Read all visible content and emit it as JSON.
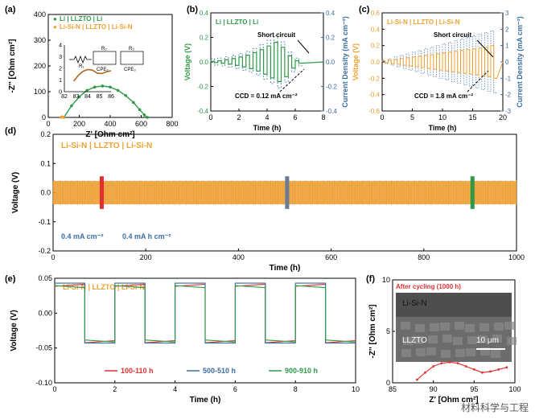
{
  "colors": {
    "green": "#2e9a48",
    "orange": "#f0a030",
    "blue": "#3a6ea5",
    "red": "#e03030",
    "gray": "#6a7c94",
    "purple": "#9a2e90"
  },
  "watermark": "材料科学与工程",
  "chart_data": [
    {
      "id": "a",
      "panel_label": "(a)",
      "type": "scatter",
      "xlabel": "Z' [Ohm cm²]",
      "ylabel": "-Z'' [Ohm cm²]",
      "xlim": [
        0,
        800
      ],
      "ylim": [
        0,
        400
      ],
      "xticks": [
        "0",
        "200",
        "400",
        "600",
        "800"
      ],
      "yticks": [
        "0",
        "100",
        "200",
        "300",
        "400"
      ],
      "legend": [
        "Li | LLZTO | Li",
        "Li-Si-N | LLZTO | Li-Si-N"
      ],
      "circuit_labels": [
        "R₁",
        "R₂",
        "R₃",
        "CPE₂",
        "CPE₃"
      ],
      "series": [
        {
          "name": "Li | LLZTO | Li",
          "x": [
            100,
            150,
            200,
            250,
            300,
            350,
            400,
            450,
            500,
            550,
            590,
            620,
            640
          ],
          "y": [
            0,
            45,
            80,
            105,
            118,
            122,
            118,
            105,
            85,
            58,
            30,
            10,
            0
          ]
        },
        {
          "name": "Li-Si-N | LLZTO | Li-Si-N",
          "x": [
            82,
            85,
            88,
            92,
            96,
            100
          ],
          "y": [
            0,
            2,
            3,
            2,
            1,
            0
          ]
        }
      ],
      "inset": {
        "xticks": [
          "82",
          "83",
          "84",
          "85",
          "86"
        ],
        "yticks": [
          "0",
          "1",
          "2",
          "3",
          "4"
        ],
        "x": [
          82.8,
          83.2,
          83.6,
          84.0,
          84.4,
          84.8,
          85.2,
          85.6,
          86.0
        ],
        "y": [
          0.9,
          1.4,
          1.75,
          1.9,
          1.85,
          1.6,
          1.55,
          1.7,
          1.8
        ]
      }
    },
    {
      "id": "b",
      "panel_label": "(b)",
      "type": "line",
      "title": "Li | LLZTO | Li",
      "xlabel": "Time (h)",
      "ylabel": "Voltage (V)",
      "y2label": "Current Density (mA cm⁻²)",
      "xlim": [
        0,
        8
      ],
      "ylim": [
        -0.4,
        0.4
      ],
      "y2lim": [
        -0.4,
        0.4
      ],
      "xticks": [
        "0",
        "2",
        "4",
        "6",
        "8"
      ],
      "yticks": [
        "-0.4",
        "-0.2",
        "0.0",
        "0.2",
        "0.4"
      ],
      "y2ticks": [
        "-0.4",
        "-0.2",
        "0.0",
        "0.2",
        "0.4"
      ],
      "annotations": [
        "Short circuit",
        "CCD = 0.12 mA cm⁻²"
      ],
      "steps": [
        0.005,
        0.01,
        0.018,
        0.028,
        0.04,
        0.055,
        0.075,
        0.1,
        0.13,
        0.16,
        0.12,
        0.05,
        0.01
      ],
      "step_duration_h": 0.5
    },
    {
      "id": "c",
      "panel_label": "(c)",
      "type": "line",
      "title": "Li-Si-N | LLZTO | Li-Si-N",
      "xlabel": "Time (h)",
      "ylabel": "Voltage (V)",
      "y2label": "Current Density (mA cm⁻²)",
      "xlim": [
        0,
        20
      ],
      "ylim": [
        -0.6,
        0.6
      ],
      "y2lim": [
        -3,
        3
      ],
      "xticks": [
        "0",
        "5",
        "10",
        "15",
        "20"
      ],
      "yticks": [
        "-0.6",
        "-0.4",
        "-0.2",
        "0.0",
        "0.2",
        "0.4",
        "0.6"
      ],
      "y2ticks": [
        "-3",
        "-2",
        "-1",
        "0",
        "1",
        "2",
        "3"
      ],
      "annotations": [
        "Short circuit",
        "CCD = 1.8 mA cm⁻²"
      ],
      "steps": [
        0.01,
        0.02,
        0.03,
        0.04,
        0.05,
        0.06,
        0.07,
        0.08,
        0.09,
        0.1,
        0.11,
        0.12,
        0.13,
        0.14,
        0.15,
        0.16,
        0.17,
        0.18,
        0.2
      ],
      "step_duration_h": 1
    },
    {
      "id": "d",
      "panel_label": "(d)",
      "type": "line",
      "title": "Li-Si-N | LLZTO | Li-Si-N",
      "xlabel": "Time (h)",
      "ylabel": "Voltage (V)",
      "xlim": [
        0,
        1000
      ],
      "ylim": [
        -0.2,
        0.2
      ],
      "xticks": [
        "0",
        "200",
        "400",
        "600",
        "800",
        "1000"
      ],
      "yticks": [
        "-0.2",
        "-0.1",
        "0.0",
        "0.1",
        "0.2"
      ],
      "annotations": [
        "0.4 mA cm⁻²",
        "0.4 mA h cm⁻²"
      ],
      "amplitude": 0.04,
      "highlight_x": [
        105,
        505,
        905
      ]
    },
    {
      "id": "e",
      "panel_label": "(e)",
      "type": "line",
      "title": "Li-Si-N | LLZTO | Li-Si-N",
      "xlabel": "Time (h)",
      "ylabel": "Voltage (V)",
      "xlim": [
        0,
        10
      ],
      "ylim": [
        -0.1,
        0.05
      ],
      "xticks": [
        "0",
        "2",
        "4",
        "6",
        "8",
        "10"
      ],
      "yticks": [
        "-0.10",
        "-0.05",
        "0.00",
        "0.05"
      ],
      "series": [
        {
          "name": "100-110 h",
          "color": "#e03030",
          "high": 0.04,
          "low": -0.041
        },
        {
          "name": "500-510 h",
          "color": "#3a6ea5",
          "high": 0.043,
          "low": -0.043
        },
        {
          "name": "900-910 h",
          "color": "#2e9a48",
          "high": 0.038,
          "low": -0.04
        }
      ]
    },
    {
      "id": "f",
      "panel_label": "(f)",
      "type": "line",
      "xlabel": "Z' [Ohm cm²]",
      "ylabel": "-Z'' [Ohm cm²]",
      "xlim": [
        85,
        100
      ],
      "ylim": [
        0,
        10
      ],
      "xticks": [
        "85",
        "90",
        "95",
        "100"
      ],
      "yticks": [
        "0",
        "5",
        "10"
      ],
      "annotation": "After cycling (1000 h)",
      "sem_labels": [
        "Li-Si-N",
        "LLZTO",
        "10 μm"
      ],
      "x": [
        88,
        89,
        90,
        91,
        92,
        93,
        94,
        95,
        96,
        97,
        98,
        99
      ],
      "y": [
        0.3,
        1.0,
        1.6,
        1.9,
        2.0,
        1.9,
        1.6,
        1.3,
        1.0,
        1.1,
        1.3,
        1.5
      ]
    }
  ]
}
